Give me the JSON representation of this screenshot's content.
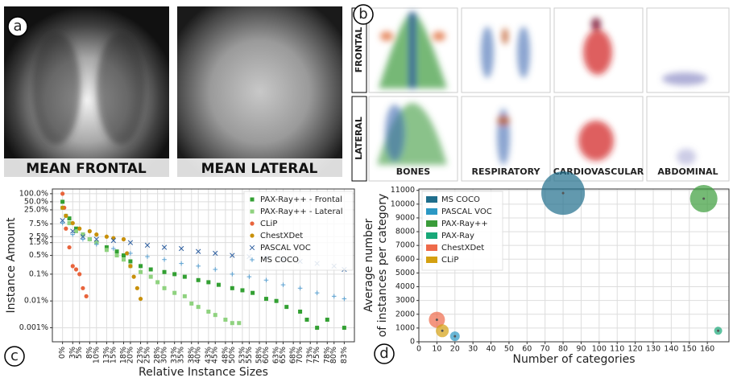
{
  "panel_a": {
    "label": "a",
    "images": [
      {
        "caption": "MEAN FRONTAL"
      },
      {
        "caption": "MEAN LATERAL"
      }
    ]
  },
  "panel_b": {
    "label": "b",
    "rows": [
      "FRONTAL",
      "LATERAL"
    ],
    "columns": [
      "BONES",
      "RESPIRATORY",
      "CARDIOVASCULAR",
      "ABDOMINAL"
    ]
  },
  "chart_data": [
    {
      "type": "scatter",
      "panel_label": "c",
      "xlabel": "Relative Instance Sizes",
      "ylabel": "Instance Amount",
      "log_y": true,
      "grid": true,
      "legend": "upper right",
      "xlim": [
        -3,
        86
      ],
      "ylim": [
        0.0003,
        150
      ],
      "xticks": [
        {
          "value": 0,
          "label": "0%"
        },
        {
          "value": 3,
          "label": "3%"
        },
        {
          "value": 5,
          "label": "5%"
        },
        {
          "value": 8,
          "label": "8%"
        },
        {
          "value": 10,
          "label": "10%"
        },
        {
          "value": 13,
          "label": "13%"
        },
        {
          "value": 15,
          "label": "15%"
        },
        {
          "value": 18,
          "label": "18%"
        },
        {
          "value": 20,
          "label": "20%"
        },
        {
          "value": 23,
          "label": "23%"
        },
        {
          "value": 25,
          "label": "25%"
        },
        {
          "value": 28,
          "label": "28%"
        },
        {
          "value": 30,
          "label": "30%"
        },
        {
          "value": 33,
          "label": "33%"
        },
        {
          "value": 35,
          "label": "35%"
        },
        {
          "value": 38,
          "label": "38%"
        },
        {
          "value": 40,
          "label": "40%"
        },
        {
          "value": 43,
          "label": "43%"
        },
        {
          "value": 45,
          "label": "45%"
        },
        {
          "value": 48,
          "label": "48%"
        },
        {
          "value": 50,
          "label": "50%"
        },
        {
          "value": 53,
          "label": "53%"
        },
        {
          "value": 55,
          "label": "55%"
        },
        {
          "value": 58,
          "label": "58%"
        },
        {
          "value": 60,
          "label": "60%"
        },
        {
          "value": 63,
          "label": "63%"
        },
        {
          "value": 65,
          "label": "65%"
        },
        {
          "value": 68,
          "label": "68%"
        },
        {
          "value": 70,
          "label": "70%"
        },
        {
          "value": 73,
          "label": "73%"
        },
        {
          "value": 75,
          "label": "75%"
        },
        {
          "value": 78,
          "label": "78%"
        },
        {
          "value": 80,
          "label": "80%"
        },
        {
          "value": 83,
          "label": "83%"
        }
      ],
      "yticks": [
        {
          "value": 0.001,
          "label": "0.001%"
        },
        {
          "value": 0.01,
          "label": "0.01%"
        },
        {
          "value": 0.1,
          "label": "0.1%"
        },
        {
          "value": 0.5,
          "label": "0.5%"
        },
        {
          "value": 1.5,
          "label": "1.5%"
        },
        {
          "value": 2.5,
          "label": "2.5%"
        },
        {
          "value": 7.5,
          "label": "7.5%"
        },
        {
          "value": 25,
          "label": "25.0%"
        },
        {
          "value": 50,
          "label": "50.0%"
        },
        {
          "value": 100,
          "label": "100.0%"
        }
      ],
      "series": [
        {
          "name": "PAX-Ray++ - Frontal",
          "color": "#33a033",
          "marker": "square",
          "x": [
            0,
            2,
            4,
            6,
            8,
            10,
            13,
            16,
            18,
            20,
            23,
            26,
            30,
            33,
            36,
            40,
            43,
            46,
            50,
            53,
            56,
            60,
            63,
            66,
            70,
            72,
            75,
            78,
            83
          ],
          "values": [
            50,
            12,
            5,
            3,
            2,
            1.5,
            1,
            0.7,
            0.5,
            0.3,
            0.2,
            0.15,
            0.12,
            0.1,
            0.08,
            0.06,
            0.05,
            0.04,
            0.03,
            0.025,
            0.02,
            0.012,
            0.01,
            0.006,
            0.004,
            0.002,
            0.001,
            0.002,
            0.001
          ]
        },
        {
          "name": "PAX-Ray++ - Lateral",
          "color": "#8fd27f",
          "marker": "square",
          "x": [
            0,
            1,
            2,
            4,
            6,
            8,
            10,
            13,
            16,
            18,
            20,
            23,
            26,
            28,
            30,
            33,
            36,
            38,
            40,
            43,
            45,
            48,
            50,
            52
          ],
          "values": [
            30,
            15,
            8,
            4,
            3,
            2,
            1.5,
            0.8,
            0.5,
            0.35,
            0.2,
            0.12,
            0.08,
            0.05,
            0.03,
            0.02,
            0.015,
            0.008,
            0.006,
            0.004,
            0.003,
            0.002,
            0.0015,
            0.0015
          ]
        },
        {
          "name": "CLiP",
          "color": "#e8643c",
          "marker": "circle",
          "x": [
            0,
            0.5,
            1,
            2,
            3,
            4,
            5,
            6,
            7
          ],
          "values": [
            100,
            30,
            5,
            1,
            0.2,
            0.15,
            0.1,
            0.03,
            0.015
          ]
        },
        {
          "name": "ChestXDet",
          "color": "#c8900a",
          "marker": "circle",
          "x": [
            0,
            1,
            3,
            5,
            8,
            10,
            13,
            15,
            18,
            19,
            20,
            21,
            22,
            23
          ],
          "values": [
            30,
            15,
            8,
            5,
            4,
            3,
            2.5,
            2.2,
            2,
            0.6,
            0.2,
            0.08,
            0.03,
            0.012
          ]
        },
        {
          "name": "PASCAL VOC",
          "color": "#3060a0",
          "marker": "x",
          "x": [
            0,
            3,
            6,
            10,
            15,
            20,
            25,
            30,
            35,
            40,
            45,
            50,
            55,
            60,
            65,
            70,
            75,
            80,
            83
          ],
          "values": [
            10,
            4,
            2.5,
            2,
            1.8,
            1.5,
            1.2,
            1,
            0.9,
            0.7,
            0.6,
            0.5,
            0.45,
            0.4,
            0.35,
            0.3,
            0.25,
            0.2,
            0.15
          ]
        },
        {
          "name": "MS COCO",
          "color": "#5aa0d0",
          "marker": "plus",
          "x": [
            0,
            3,
            6,
            10,
            15,
            20,
            25,
            30,
            35,
            40,
            45,
            50,
            55,
            60,
            65,
            70,
            75,
            80,
            83
          ],
          "values": [
            8,
            3,
            2,
            1.3,
            0.9,
            0.6,
            0.45,
            0.35,
            0.25,
            0.2,
            0.15,
            0.1,
            0.08,
            0.06,
            0.04,
            0.03,
            0.02,
            0.015,
            0.012
          ]
        }
      ]
    },
    {
      "type": "bubble",
      "panel_label": "d",
      "xlabel": "Number of categories",
      "ylabel": [
        "Average number",
        "of instances per category"
      ],
      "grid": true,
      "legend": "upper left",
      "xlim": [
        0,
        172
      ],
      "ylim": [
        0,
        11100
      ],
      "xticks": [
        0,
        10,
        20,
        30,
        40,
        50,
        60,
        70,
        80,
        90,
        100,
        110,
        120,
        130,
        140,
        150,
        160
      ],
      "yticks": [
        0,
        1000,
        2000,
        3000,
        4000,
        5000,
        6000,
        7000,
        8000,
        9000,
        10000,
        11000
      ],
      "series": [
        {
          "name": "MS COCO",
          "color": "#1f6e8c",
          "x": 80,
          "y": 10800,
          "size": 730
        },
        {
          "name": "PASCAL VOC",
          "color": "#2b98c4",
          "x": 20,
          "y": 400,
          "size": 36
        },
        {
          "name": "PAX-Ray++",
          "color": "#3a9c3a",
          "x": 158,
          "y": 10400,
          "size": 290
        },
        {
          "name": "PAX-Ray",
          "color": "#18a878",
          "x": 166,
          "y": 800,
          "size": 25
        },
        {
          "name": "ChestXDet",
          "color": "#ee6a4a",
          "x": 10,
          "y": 1600,
          "size": 100
        },
        {
          "name": "CLiP",
          "color": "#d4a010",
          "x": 13,
          "y": 800,
          "size": 64
        }
      ]
    }
  ]
}
